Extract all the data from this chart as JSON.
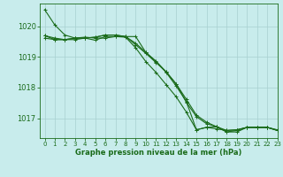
{
  "background_color": "#c8ecec",
  "grid_color": "#a8d0d0",
  "line_color": "#1a6b1a",
  "xlabel": "Graphe pression niveau de la mer (hPa)",
  "xlim": [
    -0.5,
    23
  ],
  "ylim": [
    1016.35,
    1020.75
  ],
  "yticks": [
    1017,
    1018,
    1019,
    1020
  ],
  "xticks": [
    0,
    1,
    2,
    3,
    4,
    5,
    6,
    7,
    8,
    9,
    10,
    11,
    12,
    13,
    14,
    15,
    16,
    17,
    18,
    19,
    20,
    21,
    22,
    23
  ],
  "series": [
    [
      1020.55,
      1020.05,
      1019.72,
      1019.62,
      1019.65,
      1019.62,
      1019.62,
      1019.67,
      1019.67,
      1019.67,
      1019.15,
      1018.85,
      1018.5,
      1018.05,
      1017.55,
      1016.62,
      1016.7,
      1016.72,
      1016.55,
      1016.55,
      1016.7,
      1016.7,
      1016.7,
      1016.62
    ],
    [
      1019.7,
      1019.62,
      1019.57,
      1019.62,
      1019.62,
      1019.55,
      1019.67,
      1019.67,
      1019.65,
      1019.3,
      1018.85,
      1018.5,
      1018.1,
      1017.7,
      1017.2,
      1016.62,
      1016.7,
      1016.65,
      1016.6,
      1016.62,
      1016.7,
      1016.7,
      1016.7,
      1016.6
    ],
    [
      1019.7,
      1019.57,
      1019.57,
      1019.57,
      1019.62,
      1019.65,
      1019.72,
      1019.72,
      1019.67,
      1019.45,
      1019.15,
      1018.87,
      1018.52,
      1018.12,
      1017.62,
      1017.1,
      1016.87,
      1016.72,
      1016.6,
      1016.62,
      1016.7,
      1016.7,
      1016.7,
      1016.6
    ],
    [
      1019.62,
      1019.57,
      1019.57,
      1019.62,
      1019.62,
      1019.65,
      1019.72,
      1019.72,
      1019.67,
      1019.4,
      1019.12,
      1018.82,
      1018.52,
      1018.12,
      1017.52,
      1017.05,
      1016.82,
      1016.72,
      1016.55,
      1016.6,
      1016.7,
      1016.7,
      1016.7,
      1016.6
    ]
  ],
  "marker": "+",
  "marker_size": 3,
  "linewidth": 0.8
}
